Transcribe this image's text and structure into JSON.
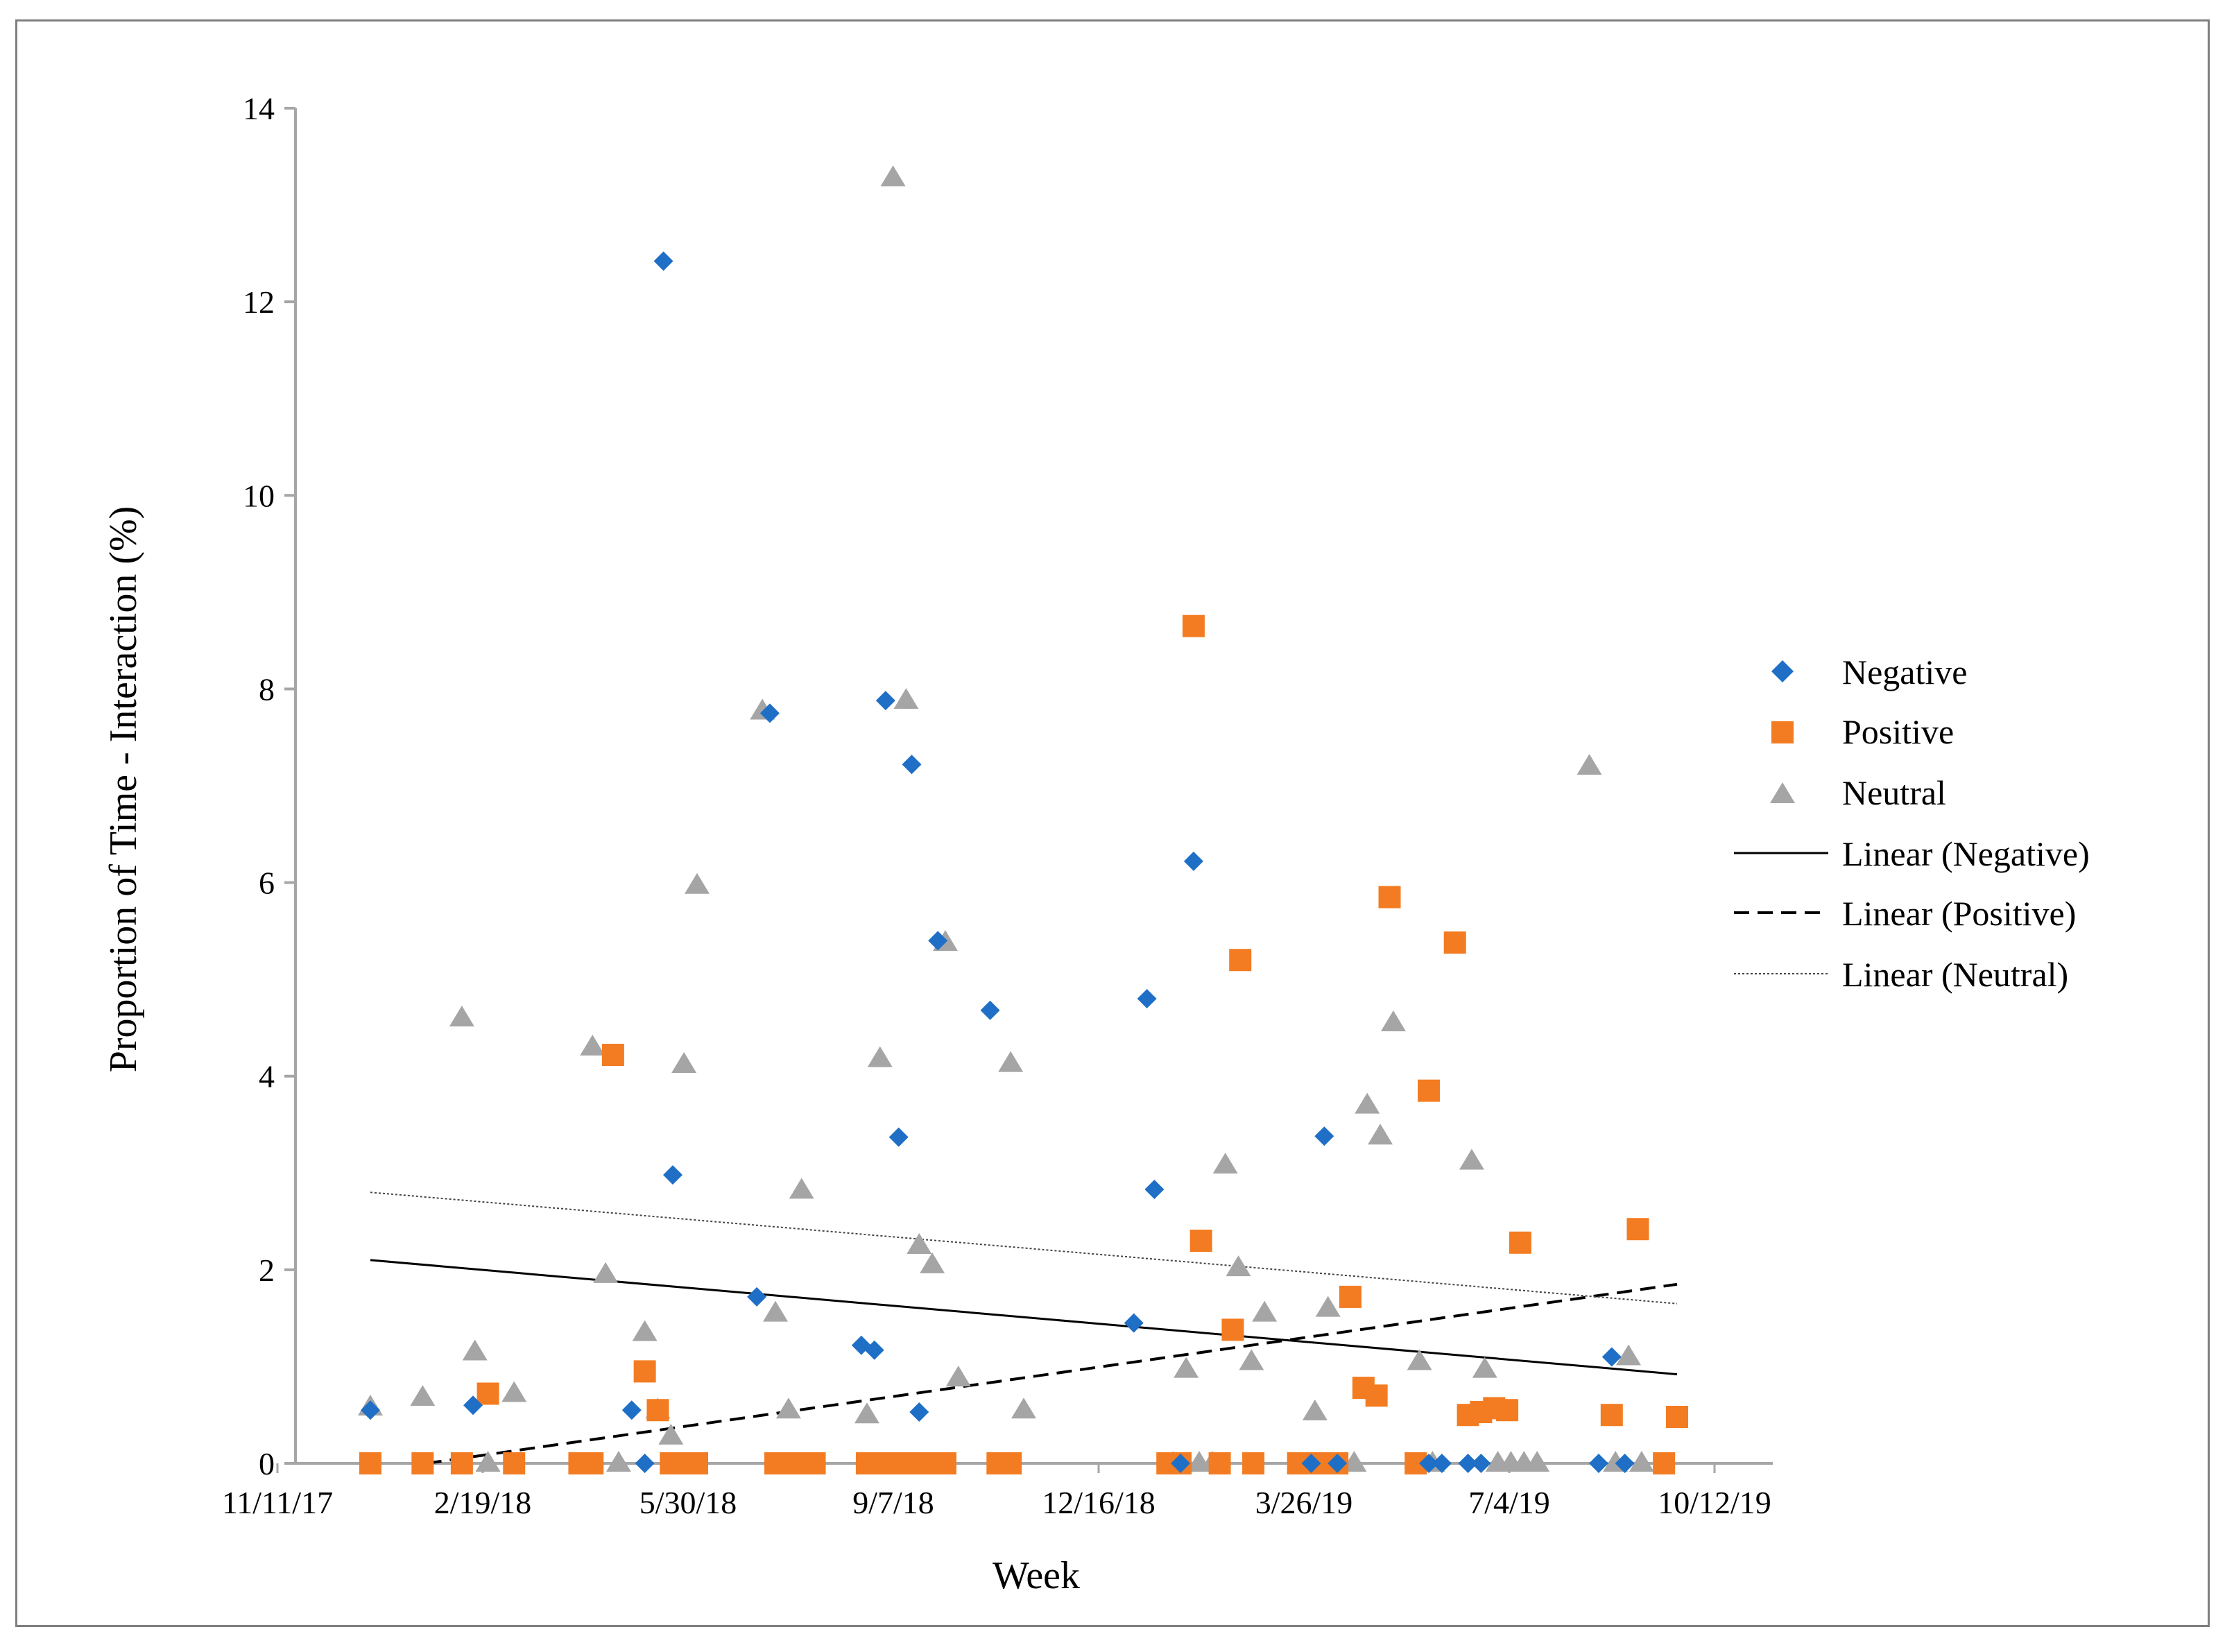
{
  "chart_data": {
    "type": "scatter",
    "title": "",
    "xlabel": "Week",
    "ylabel": "Proportion of Time - Interaction (%)",
    "ylim": [
      0,
      14
    ],
    "yticks": [
      "0",
      "2",
      "4",
      "6",
      "8",
      "10",
      "12",
      "14"
    ],
    "xticks": [
      "11/11/17",
      "2/19/18",
      "5/30/18",
      "9/7/18",
      "12/16/18",
      "3/26/19",
      "7/4/19",
      "10/12/19"
    ],
    "xlim_days": [
      0,
      700
    ],
    "x_unit": "days since 11/11/17",
    "legend_position": "right",
    "colors": {
      "negative": "#1f6fc6",
      "positive": "#f37c22",
      "neutral": "#a5a5a5",
      "axis": "#a6a6a6",
      "trend": "#000000"
    },
    "series": [
      {
        "name": "Negative",
        "marker": "diamond",
        "points": [
          [
            0,
            0.55
          ],
          [
            55,
            0.6
          ],
          [
            140,
            0.55
          ],
          [
            147,
            0
          ],
          [
            157,
            12.42
          ],
          [
            162,
            2.98
          ],
          [
            207,
            1.72
          ],
          [
            214,
            7.75
          ],
          [
            263,
            1.22
          ],
          [
            270,
            1.17
          ],
          [
            276,
            7.88
          ],
          [
            283,
            3.37
          ],
          [
            290,
            7.22
          ],
          [
            294,
            0.53
          ],
          [
            304,
            5.4
          ],
          [
            332,
            4.68
          ],
          [
            409,
            1.45
          ],
          [
            416,
            4.8
          ],
          [
            420,
            2.83
          ],
          [
            434,
            0
          ],
          [
            441,
            6.22
          ],
          [
            504,
            0
          ],
          [
            511,
            3.38
          ],
          [
            518,
            0
          ],
          [
            567,
            0
          ],
          [
            574,
            0
          ],
          [
            588,
            0
          ],
          [
            595,
            0
          ],
          [
            658,
            0
          ],
          [
            665,
            1.1
          ],
          [
            672,
            0
          ]
        ]
      },
      {
        "name": "Positive",
        "marker": "square",
        "points": [
          [
            0,
            0
          ],
          [
            28,
            0
          ],
          [
            49,
            0
          ],
          [
            63,
            0.72
          ],
          [
            77,
            0
          ],
          [
            112,
            0
          ],
          [
            119,
            0
          ],
          [
            130,
            4.22
          ],
          [
            147,
            0.95
          ],
          [
            154,
            0.55
          ],
          [
            161,
            0
          ],
          [
            168,
            0
          ],
          [
            175,
            0
          ],
          [
            217,
            0
          ],
          [
            224,
            0
          ],
          [
            231,
            0
          ],
          [
            238,
            0
          ],
          [
            266,
            0
          ],
          [
            273,
            0
          ],
          [
            280,
            0
          ],
          [
            287,
            0
          ],
          [
            294,
            0
          ],
          [
            301,
            0
          ],
          [
            308,
            0
          ],
          [
            336,
            0
          ],
          [
            343,
            0
          ],
          [
            427,
            0
          ],
          [
            434,
            0
          ],
          [
            441,
            8.65
          ],
          [
            445,
            2.3
          ],
          [
            455,
            0
          ],
          [
            462,
            1.38
          ],
          [
            466,
            5.2
          ],
          [
            473,
            0
          ],
          [
            497,
            0
          ],
          [
            504,
            0
          ],
          [
            511,
            0
          ],
          [
            518,
            0
          ],
          [
            525,
            1.72
          ],
          [
            532,
            0.78
          ],
          [
            539,
            0.7
          ],
          [
            546,
            5.85
          ],
          [
            560,
            0
          ],
          [
            567,
            3.85
          ],
          [
            581,
            5.38
          ],
          [
            588,
            0.5
          ],
          [
            595,
            0.53
          ],
          [
            602,
            0.57
          ],
          [
            609,
            0.55
          ],
          [
            616,
            2.28
          ],
          [
            665,
            0.5
          ],
          [
            679,
            2.42
          ],
          [
            693,
            0
          ],
          [
            700,
            0.48
          ]
        ]
      },
      {
        "name": "Neutral",
        "marker": "triangle",
        "points": [
          [
            0,
            0.58
          ],
          [
            28,
            0.68
          ],
          [
            49,
            4.6
          ],
          [
            56,
            1.15
          ],
          [
            63,
            0
          ],
          [
            77,
            0.72
          ],
          [
            119,
            4.3
          ],
          [
            126,
            1.95
          ],
          [
            133,
            0
          ],
          [
            147,
            1.35
          ],
          [
            154,
            0.55
          ],
          [
            161,
            0.28
          ],
          [
            168,
            4.12
          ],
          [
            175,
            5.97
          ],
          [
            210,
            7.77
          ],
          [
            217,
            1.55
          ],
          [
            224,
            0.55
          ],
          [
            231,
            2.82
          ],
          [
            266,
            0.5
          ],
          [
            273,
            4.18
          ],
          [
            280,
            13.28
          ],
          [
            287,
            7.88
          ],
          [
            294,
            2.25
          ],
          [
            301,
            2.05
          ],
          [
            308,
            5.38
          ],
          [
            315,
            0.88
          ],
          [
            343,
            4.13
          ],
          [
            350,
            0.55
          ],
          [
            430,
            0
          ],
          [
            437,
            0.97
          ],
          [
            444,
            0
          ],
          [
            451,
            0
          ],
          [
            458,
            3.08
          ],
          [
            465,
            2.02
          ],
          [
            472,
            1.05
          ],
          [
            479,
            1.55
          ],
          [
            506,
            0.53
          ],
          [
            513,
            1.6
          ],
          [
            527,
            0
          ],
          [
            534,
            3.7
          ],
          [
            541,
            3.38
          ],
          [
            548,
            4.55
          ],
          [
            562,
            1.05
          ],
          [
            569,
            0
          ],
          [
            590,
            3.12
          ],
          [
            597,
            0.97
          ],
          [
            604,
            0
          ],
          [
            611,
            0
          ],
          [
            618,
            0
          ],
          [
            625,
            0
          ],
          [
            653,
            7.2
          ],
          [
            667,
            0
          ],
          [
            674,
            1.1
          ],
          [
            681,
            0
          ]
        ]
      }
    ],
    "trendlines": [
      {
        "name": "Linear (Negative)",
        "style": "solid",
        "x": [
          0,
          700
        ],
        "y": [
          2.1,
          0.92
        ]
      },
      {
        "name": "Linear (Positive)",
        "style": "dashed",
        "x": [
          30,
          700
        ],
        "y": [
          0.0,
          1.85
        ]
      },
      {
        "name": "Linear (Neutral)",
        "style": "dotted",
        "x": [
          0,
          700
        ],
        "y": [
          2.8,
          1.65
        ]
      }
    ],
    "legend": [
      "Negative",
      "Positive",
      "Neutral",
      "Linear (Negative)",
      "Linear (Positive)",
      "Linear (Neutral)"
    ]
  }
}
